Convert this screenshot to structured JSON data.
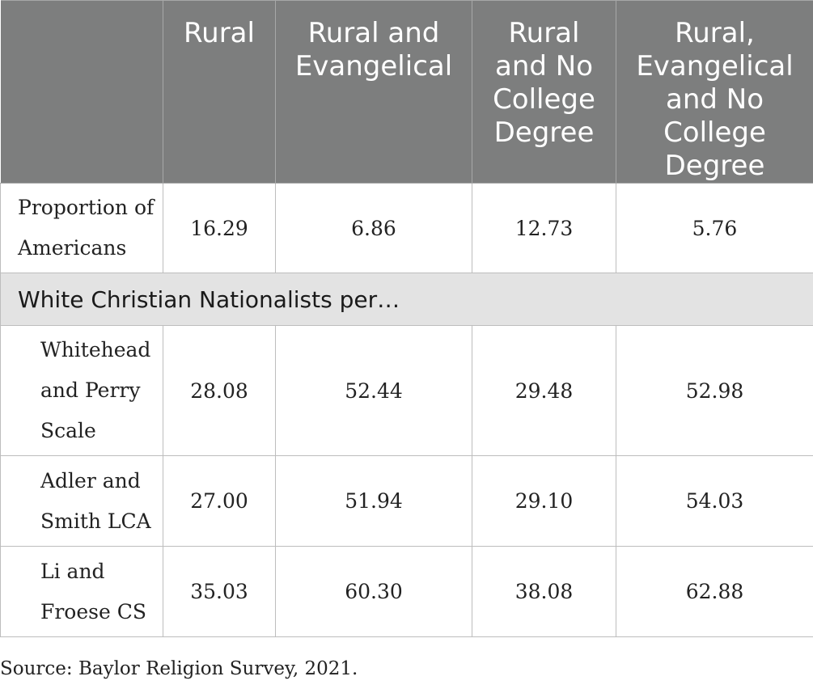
{
  "table": {
    "headers": [
      "",
      "Rural",
      "Rural and Evangelical",
      "Rural and No College Degree",
      "Rural, Evangelical and No College Degree"
    ],
    "header_lines": [
      [],
      [
        "Rural"
      ],
      [
        "Rural and",
        "Evangelical"
      ],
      [
        "Rural",
        "and No",
        "College",
        "Degree"
      ],
      [
        "Rural,",
        "Evangelical",
        "and No",
        "College",
        "Degree"
      ]
    ],
    "proportion_row": {
      "label_lines": [
        "Proportion of",
        "Americans"
      ],
      "values": [
        "16.29",
        "6.86",
        "12.73",
        "5.76"
      ]
    },
    "section_heading": "White Christian Nationalists per…",
    "rows": [
      {
        "label_lines": [
          "Whitehead",
          "and Perry",
          "Scale"
        ],
        "values": [
          "28.08",
          "52.44",
          "29.48",
          "52.98"
        ]
      },
      {
        "label_lines": [
          "Adler and",
          "Smith LCA"
        ],
        "values": [
          "27.00",
          "51.94",
          "29.10",
          "54.03"
        ]
      },
      {
        "label_lines": [
          "Li and",
          "Froese CS"
        ],
        "values": [
          "35.03",
          "60.30",
          "38.08",
          "62.88"
        ]
      }
    ]
  },
  "source_note": "Source: Baylor Religion Survey, 2021.",
  "colors": {
    "header_bg": "#7d7e7e",
    "section_bg": "#e3e3e3",
    "border": "#bdbdbd"
  }
}
